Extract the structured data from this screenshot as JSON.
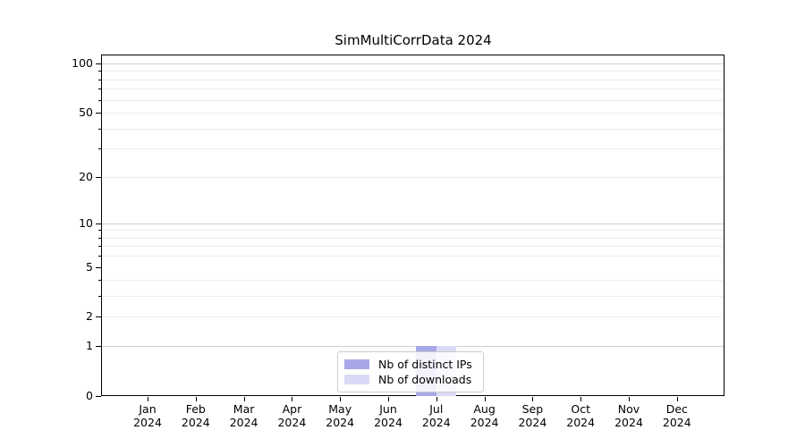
{
  "figure": {
    "background": "#ffffff"
  },
  "chart_data": {
    "type": "bar",
    "title": "SimMultiCorrData 2024",
    "categories": [
      "Jan",
      "Feb",
      "Mar",
      "Apr",
      "May",
      "Jun",
      "Jul",
      "Aug",
      "Sep",
      "Oct",
      "Nov",
      "Dec"
    ],
    "category_year": "2024",
    "series": [
      {
        "name": "Nb of distinct IPs",
        "color": "#a8a8e8",
        "values": [
          0,
          0,
          0,
          0,
          0,
          0,
          1,
          0,
          0,
          0,
          0,
          0
        ]
      },
      {
        "name": "Nb of downloads",
        "color": "#dadaf6",
        "values": [
          0,
          0,
          0,
          0,
          0,
          0,
          1,
          0,
          0,
          0,
          0,
          0
        ]
      }
    ],
    "xlabel": "",
    "ylabel": "",
    "yscale": "log1p",
    "ylim": [
      0,
      112
    ],
    "y_major_ticks": [
      0,
      1,
      2,
      5,
      10,
      20,
      50,
      100
    ],
    "y_major_gridlines": [
      1,
      10,
      100
    ],
    "y_minor_gridlines": [
      2,
      3,
      4,
      6,
      7,
      8,
      9,
      20,
      30,
      40,
      50,
      60,
      70,
      80,
      90
    ],
    "grid": "horizontal",
    "legend_position": "lower center"
  },
  "colors": {
    "grid_major": "#cfcfcf",
    "grid_minor": "#ececec",
    "spine": "#000000",
    "text": "#000000",
    "legend_border": "#cccccc"
  }
}
